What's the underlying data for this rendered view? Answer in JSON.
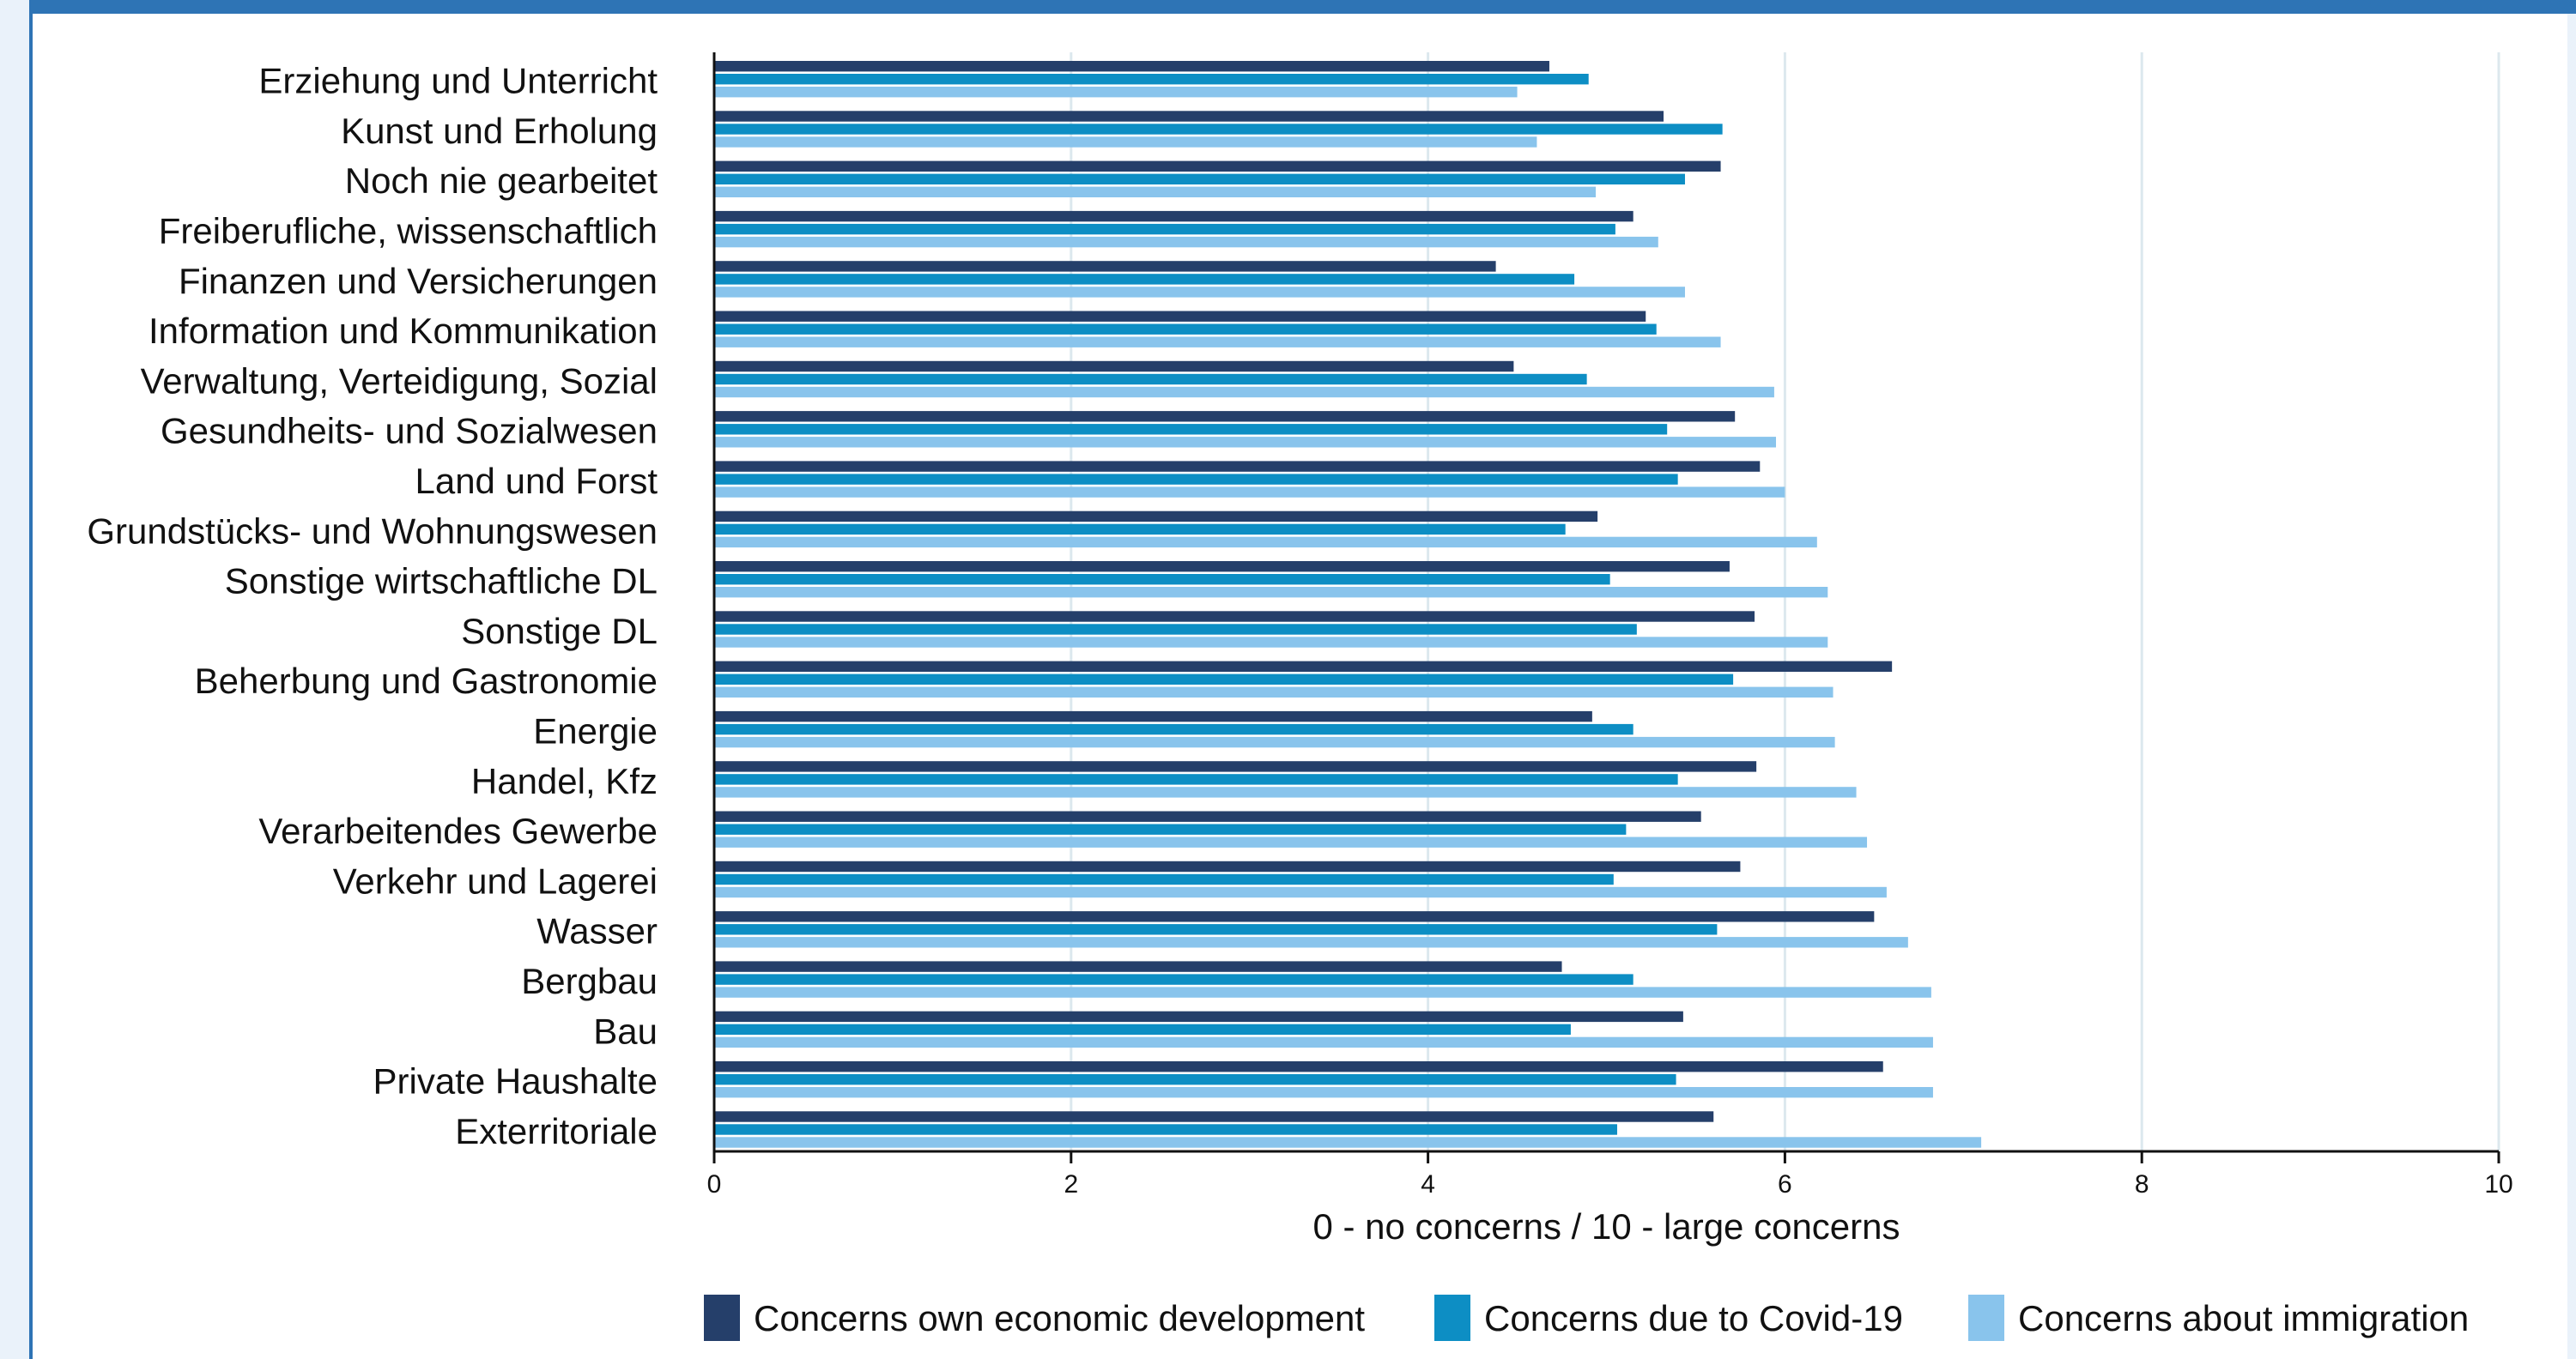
{
  "chart_data": {
    "type": "bar",
    "orientation": "horizontal",
    "categories": [
      "Erziehung und Unterricht",
      "Kunst und Erholung",
      "Noch nie gearbeitet",
      "Freiberufliche, wissenschaftlich",
      "Finanzen und Versicherungen",
      "Information und Kommunikation",
      "Verwaltung, Verteidigung, Sozial",
      "Gesundheits- und Sozialwesen",
      "Land und Forst",
      "Grundstücks- und Wohnungswesen",
      "Sonstige wirtschaftliche DL",
      "Sonstige DL",
      "Beherbung und Gastronomie",
      "Energie",
      "Handel, Kfz",
      "Verarbeitendes Gewerbe",
      "Verkehr und Lagerei",
      "Wasser",
      "Bergbau",
      "Bau",
      "Private Haushalte",
      "Exterritoriale"
    ],
    "series": [
      {
        "name": "Concerns own economic development",
        "color": "#253f6a",
        "values": [
          4.68,
          5.32,
          5.64,
          5.15,
          4.38,
          5.22,
          4.48,
          5.72,
          5.86,
          4.95,
          5.69,
          5.83,
          6.6,
          4.92,
          5.84,
          5.53,
          5.75,
          6.5,
          4.75,
          5.43,
          6.55,
          5.6
        ]
      },
      {
        "name": "Concerns due to Covid-19",
        "color": "#0d8ec4",
        "values": [
          4.9,
          5.65,
          5.44,
          5.05,
          4.82,
          5.28,
          4.89,
          5.34,
          5.4,
          4.77,
          5.02,
          5.17,
          5.71,
          5.15,
          5.4,
          5.11,
          5.04,
          5.62,
          5.15,
          4.8,
          5.39,
          5.06
        ]
      },
      {
        "name": "Concerns about immigration",
        "color": "#89c4ec",
        "values": [
          4.5,
          4.61,
          4.94,
          5.29,
          5.44,
          5.64,
          5.94,
          5.95,
          6.0,
          6.18,
          6.24,
          6.24,
          6.27,
          6.28,
          6.4,
          6.46,
          6.57,
          6.69,
          6.82,
          6.83,
          6.83,
          7.1
        ]
      }
    ],
    "xlim": [
      0,
      10
    ],
    "xticks": [
      "0",
      "2",
      "4",
      "6",
      "8",
      "10"
    ],
    "xlabel": "0 - no concerns / 10 - large concerns",
    "grid": true,
    "legend_position": "bottom"
  }
}
